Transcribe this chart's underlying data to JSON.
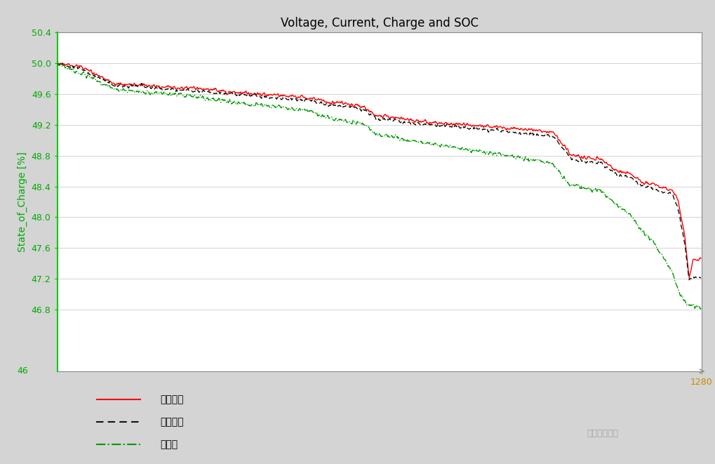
{
  "title": "Voltage, Current, Charge and SOC",
  "ylabel": "State_of_Charge [%]",
  "ylim": [
    46.0,
    50.4
  ],
  "xlim": [
    0,
    1280
  ],
  "yticks": [
    46.8,
    47.2,
    47.6,
    48.0,
    48.4,
    48.8,
    49.2,
    49.6,
    50.0,
    50.4
  ],
  "background_color": "#d8d8d8",
  "plot_bg_color": "#ffffff",
  "title_color": "#000000",
  "ylabel_color": "#00aa00",
  "tick_color_y": "#00aa00",
  "tick_color_x": "#cc8800",
  "grid_color": "#cccccc",
  "legend_labels": [
    "模糊控制",
    "并联回收",
    "无回收"
  ],
  "legend_colors": [
    "#ff0000",
    "#000000",
    "#00bb00"
  ],
  "watermark": "王浮生不怕生",
  "red_keypoints_t": [
    0,
    0.035,
    0.09,
    0.115,
    0.13,
    0.145,
    0.19,
    0.21,
    0.235,
    0.265,
    0.285,
    0.31,
    0.345,
    0.365,
    0.395,
    0.415,
    0.435,
    0.455,
    0.475,
    0.495,
    0.515,
    0.535,
    0.545,
    0.57,
    0.6,
    0.625,
    0.645,
    0.66,
    0.685,
    0.71,
    0.74,
    0.77,
    0.8,
    0.825,
    0.845,
    0.87,
    0.89,
    0.91,
    0.925,
    0.94,
    0.955,
    0.965,
    0.975,
    0.982,
    0.988,
    0.993,
    1.0
  ],
  "red_keypoints_v": [
    50.0,
    49.96,
    49.73,
    49.72,
    49.72,
    49.7,
    49.68,
    49.68,
    49.66,
    49.63,
    49.62,
    49.6,
    49.58,
    49.57,
    49.55,
    49.5,
    49.49,
    49.46,
    49.44,
    49.32,
    49.31,
    49.28,
    49.27,
    49.24,
    49.22,
    49.21,
    49.19,
    49.18,
    49.17,
    49.15,
    49.13,
    49.11,
    48.8,
    48.77,
    48.75,
    48.6,
    48.57,
    48.45,
    48.44,
    48.38,
    48.35,
    48.2,
    47.75,
    47.2,
    47.45,
    47.45,
    47.45
  ],
  "black_keypoints_t": [
    0,
    0.035,
    0.09,
    0.115,
    0.13,
    0.145,
    0.19,
    0.21,
    0.235,
    0.265,
    0.285,
    0.31,
    0.345,
    0.365,
    0.395,
    0.415,
    0.435,
    0.455,
    0.475,
    0.495,
    0.515,
    0.535,
    0.545,
    0.57,
    0.6,
    0.625,
    0.645,
    0.66,
    0.685,
    0.71,
    0.74,
    0.77,
    0.8,
    0.825,
    0.845,
    0.87,
    0.89,
    0.91,
    0.925,
    0.94,
    0.955,
    0.965,
    0.975,
    0.982,
    0.988,
    0.993,
    1.0
  ],
  "black_keypoints_v": [
    50.0,
    49.93,
    49.71,
    49.7,
    49.7,
    49.68,
    49.65,
    49.65,
    49.63,
    49.6,
    49.59,
    49.57,
    49.55,
    49.54,
    49.52,
    49.47,
    49.46,
    49.43,
    49.41,
    49.28,
    49.27,
    49.24,
    49.23,
    49.21,
    49.19,
    49.18,
    49.15,
    49.14,
    49.13,
    49.1,
    49.08,
    49.05,
    48.75,
    48.72,
    48.7,
    48.55,
    48.52,
    48.4,
    48.39,
    48.33,
    48.3,
    48.1,
    47.65,
    47.18,
    47.22,
    47.22,
    47.22
  ],
  "green_keypoints_t": [
    0,
    0.035,
    0.09,
    0.115,
    0.13,
    0.145,
    0.19,
    0.21,
    0.235,
    0.265,
    0.285,
    0.31,
    0.345,
    0.365,
    0.395,
    0.415,
    0.435,
    0.455,
    0.475,
    0.495,
    0.515,
    0.535,
    0.545,
    0.57,
    0.6,
    0.625,
    0.645,
    0.66,
    0.685,
    0.71,
    0.74,
    0.77,
    0.795,
    0.82,
    0.845,
    0.87,
    0.89,
    0.91,
    0.925,
    0.94,
    0.955,
    0.965,
    0.975,
    0.982,
    0.988,
    0.993,
    1.0
  ],
  "green_keypoints_v": [
    50.0,
    49.88,
    49.66,
    49.64,
    49.63,
    49.62,
    49.58,
    49.57,
    49.54,
    49.51,
    49.48,
    49.46,
    49.43,
    49.41,
    49.38,
    49.3,
    49.28,
    49.23,
    49.21,
    49.08,
    49.05,
    49.02,
    49.0,
    48.97,
    48.93,
    48.9,
    48.87,
    48.85,
    48.82,
    48.78,
    48.74,
    48.7,
    48.42,
    48.38,
    48.35,
    48.15,
    48.05,
    47.8,
    47.7,
    47.5,
    47.3,
    47.05,
    46.9,
    46.85,
    46.85,
    46.85,
    46.85
  ]
}
